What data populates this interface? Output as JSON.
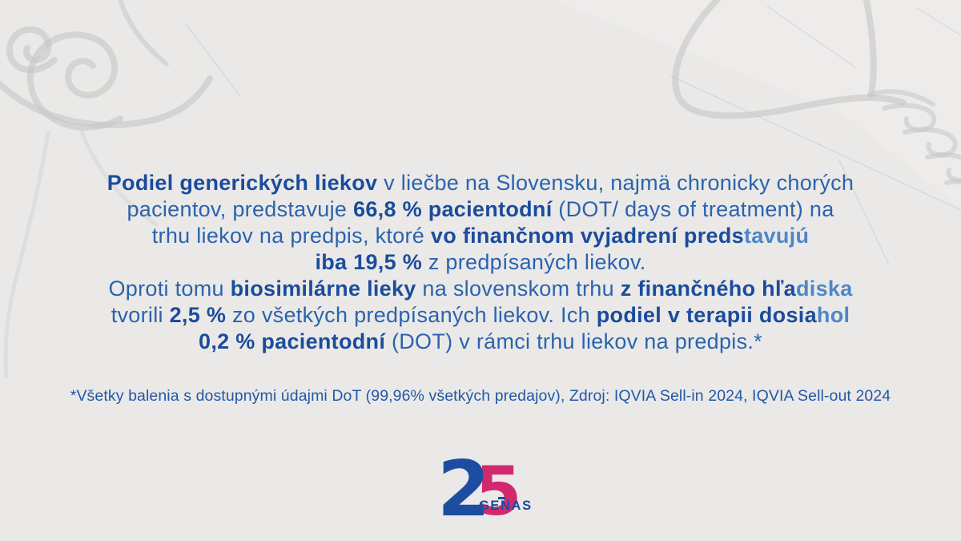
{
  "colors": {
    "bold_blue": "#1b4c9c",
    "regular_blue": "#2a63ae",
    "light_blue": "#4d87c7",
    "footnote_blue": "#2258a6",
    "logo_blue": "#1c4da0",
    "logo_pink": "#d2286d",
    "background": "#eae9e8",
    "sketch": "#c6c6c6"
  },
  "paragraph": {
    "lines": [
      {
        "segments": [
          {
            "text": "Podiel generických liekov",
            "style": "bold"
          },
          {
            "text": " v liečbe na Slovensku, najmä chronicky chorých",
            "style": "regular"
          }
        ]
      },
      {
        "segments": [
          {
            "text": "pacientov, predstavuje ",
            "style": "regular"
          },
          {
            "text": "66,8 % pacientodní",
            "style": "bold"
          },
          {
            "text": " (DOT/ days of treatment) na",
            "style": "regular"
          }
        ]
      },
      {
        "segments": [
          {
            "text": "trhu liekov na predpis, ktoré ",
            "style": "regular"
          },
          {
            "text": "vo finančnom vyjadrení preds",
            "style": "bold"
          },
          {
            "text": "tavujú",
            "style": "bold-light"
          }
        ]
      },
      {
        "segments": [
          {
            "text": "iba 19,5 %",
            "style": "bold"
          },
          {
            "text": " z predpísaných liekov.",
            "style": "regular"
          }
        ]
      },
      {
        "segments": [
          {
            "text": "Oproti tomu ",
            "style": "regular"
          },
          {
            "text": "biosimilárne lieky",
            "style": "bold"
          },
          {
            "text": " na slovenskom trhu ",
            "style": "regular"
          },
          {
            "text": "z finančného hľa",
            "style": "bold"
          },
          {
            "text": "diska",
            "style": "bold-light"
          }
        ]
      },
      {
        "segments": [
          {
            "text": "tvorili ",
            "style": "regular"
          },
          {
            "text": "2,5 %",
            "style": "bold"
          },
          {
            "text": " zo všetkých predpísaných liekov. Ich ",
            "style": "regular"
          },
          {
            "text": "podiel v terapii dosia",
            "style": "bold"
          },
          {
            "text": "hol",
            "style": "bold-light"
          }
        ]
      },
      {
        "segments": [
          {
            "text": "0,2 % pacientodní",
            "style": "bold"
          },
          {
            "text": " (DOT) v rámci trhu liekov na predpis.*",
            "style": "regular"
          }
        ]
      }
    ]
  },
  "footnote": {
    "text": "*Všetky balenia s dostupnými údajmi DoT (99,96% všetkých predajov), Zdroj: IQVIA Sell-in 2024, IQVIA Sell-out 2024"
  },
  "logo": {
    "digit_2": "2",
    "digit_5": "5",
    "wordmark": "GENAS"
  }
}
